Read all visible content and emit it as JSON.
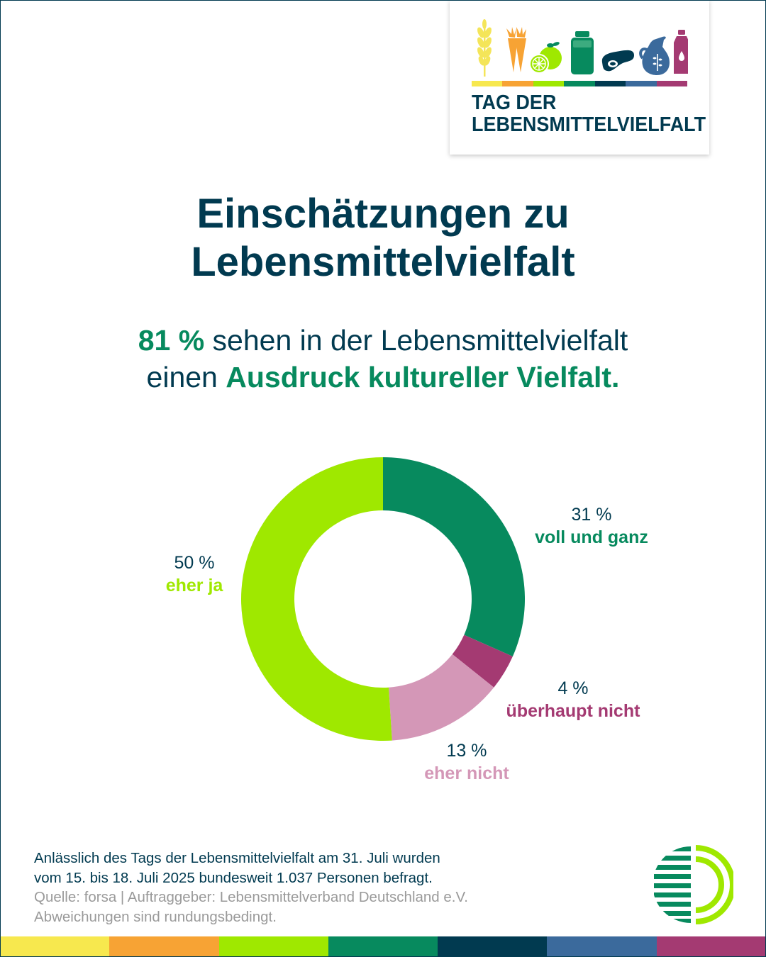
{
  "brand": {
    "line1": "TAG DER",
    "line2": "LEBENSMITTELVIELFALT",
    "icons": [
      "wheat-icon",
      "carrot-icon",
      "citrus-icon",
      "milk-bottle-icon",
      "steak-icon",
      "jug-icon",
      "water-bottle-icon"
    ],
    "palette": [
      "#f7e84e",
      "#f7a334",
      "#9fe800",
      "#078a5e",
      "#013a50",
      "#3b6a9c",
      "#a43a72"
    ]
  },
  "title": {
    "line1": "Einschätzungen zu",
    "line2": "Lebensmittelvielfalt"
  },
  "subtitle": {
    "highlight_pct": "81 %",
    "line1_rest": " sehen in der Lebensmittelvielfalt",
    "line2_start": "einen ",
    "line2_highlight": "Ausdruck kultureller Vielfalt."
  },
  "chart_data": {
    "type": "pie",
    "variant": "donut",
    "title": "",
    "start": "top",
    "direction": "clockwise",
    "categories": [
      "voll und ganz",
      "überhaupt nicht",
      "eher nicht",
      "eher ja"
    ],
    "values": [
      31,
      4,
      13,
      50
    ],
    "labels": [
      "31 %",
      "4 %",
      "13 %",
      "50 %"
    ],
    "colors": [
      "#078a5e",
      "#a43a72",
      "#d497b7",
      "#9fe800"
    ],
    "label_colors": [
      "#078a5e",
      "#a43a72",
      "#d497b7",
      "#9fe800"
    ],
    "unit": "%",
    "legend": "none (direct labels)"
  },
  "footer": {
    "note_line1": "Anlässlich des Tags der Lebensmittelvielfalt am 31. Juli wurden",
    "note_line2": "vom 15. bis 18. Juli 2025 bundesweit 1.037 Personen befragt.",
    "source": "Quelle: forsa | Auftraggeber: Lebensmittelverband Deutschland e.V.",
    "disclaimer": "Abweichungen sind rundungsbedingt.",
    "logo": "lebensmittelverband-logo"
  },
  "bottom_bar": {
    "colors": [
      "#f7e84e",
      "#f7a334",
      "#9fe800",
      "#078a5e",
      "#013a50",
      "#3b6a9c",
      "#a43a72"
    ]
  }
}
